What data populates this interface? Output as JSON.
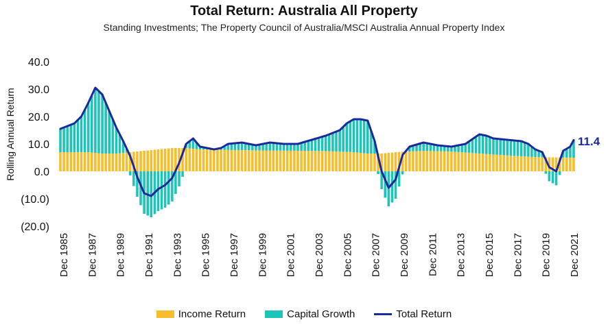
{
  "chart_data": {
    "type": "bar",
    "title": "Total Return: Australia All Property",
    "subtitle": "Standing Investments; The Property Council of Australia/MSCI Australia Annual Property Index",
    "ylabel": "Rolling Annual Return",
    "ylim": [
      -20,
      40
    ],
    "yticks": [
      {
        "value": 40,
        "label": "40.0"
      },
      {
        "value": 30,
        "label": "30.0"
      },
      {
        "value": 20,
        "label": "20.0"
      },
      {
        "value": 10,
        "label": "10.0"
      },
      {
        "value": 0,
        "label": "0.0"
      },
      {
        "value": -10,
        "label": "(10.0)"
      },
      {
        "value": -20,
        "label": "(20.0)"
      }
    ],
    "xtick_labels": [
      "Dec 1985",
      "Dec 1987",
      "Dec 1989",
      "Dec 1991",
      "Dec 1993",
      "Dec 1995",
      "Dec 1997",
      "Dec 1999",
      "Dec 2001",
      "Dec 2003",
      "Dec 2005",
      "Dec 2007",
      "Dec 2009",
      "Dec 2011",
      "Dec 2013",
      "Dec 2015",
      "Dec 2017",
      "Dec 2019",
      "Dec 2021"
    ],
    "end_label": "11.4",
    "colors": {
      "income": "#F6BE2C",
      "capital": "#1CC5B8",
      "total": "#1A2A9C"
    },
    "legend": {
      "income": "Income Return",
      "capital": "Capital Growth",
      "total": "Total Return"
    },
    "start_year": 1985,
    "end_year": 2021.75,
    "income_anchors": [
      [
        1985,
        7.0
      ],
      [
        1987,
        7.0
      ],
      [
        1988,
        6.5
      ],
      [
        1989,
        6.5
      ],
      [
        1990,
        7.0
      ],
      [
        1992,
        8.0
      ],
      [
        1993,
        8.5
      ],
      [
        1994,
        8.5
      ],
      [
        1995,
        8.0
      ],
      [
        1997,
        7.8
      ],
      [
        2000,
        7.6
      ],
      [
        2004,
        7.4
      ],
      [
        2006,
        7.0
      ],
      [
        2007,
        6.5
      ],
      [
        2008,
        6.5
      ],
      [
        2009,
        7.0
      ],
      [
        2011,
        7.5
      ],
      [
        2013,
        7.2
      ],
      [
        2015,
        6.5
      ],
      [
        2017,
        5.8
      ],
      [
        2019,
        5.2
      ],
      [
        2021.75,
        5.0
      ]
    ],
    "total_anchors": [
      [
        1985,
        15.5
      ],
      [
        1986,
        17.5
      ],
      [
        1986.5,
        20
      ],
      [
        1987,
        25
      ],
      [
        1987.5,
        30.5
      ],
      [
        1988,
        28
      ],
      [
        1988.5,
        22
      ],
      [
        1989,
        16
      ],
      [
        1989.5,
        11
      ],
      [
        1990,
        5.5
      ],
      [
        1990.5,
        -2
      ],
      [
        1991,
        -8
      ],
      [
        1991.5,
        -9
      ],
      [
        1992,
        -6.5
      ],
      [
        1992.5,
        -5
      ],
      [
        1993,
        -2.5
      ],
      [
        1993.5,
        3
      ],
      [
        1994,
        10
      ],
      [
        1994.5,
        12
      ],
      [
        1995,
        9
      ],
      [
        1996,
        8
      ],
      [
        1996.5,
        8.5
      ],
      [
        1997,
        10
      ],
      [
        1998,
        10.5
      ],
      [
        1999,
        9.5
      ],
      [
        2000,
        10.5
      ],
      [
        2001,
        10
      ],
      [
        2002,
        10
      ],
      [
        2003,
        11.5
      ],
      [
        2004,
        13
      ],
      [
        2005,
        15
      ],
      [
        2005.5,
        17.5
      ],
      [
        2006,
        19
      ],
      [
        2006.5,
        19
      ],
      [
        2007,
        18.5
      ],
      [
        2007.5,
        11
      ],
      [
        2008,
        0
      ],
      [
        2008.5,
        -6
      ],
      [
        2009,
        -3
      ],
      [
        2009.5,
        6
      ],
      [
        2010,
        9
      ],
      [
        2011,
        10.5
      ],
      [
        2012,
        9.5
      ],
      [
        2013,
        9
      ],
      [
        2014,
        10
      ],
      [
        2015,
        13.5
      ],
      [
        2015.5,
        13
      ],
      [
        2016,
        12
      ],
      [
        2017,
        11.5
      ],
      [
        2018,
        11
      ],
      [
        2018.5,
        10
      ],
      [
        2019,
        8
      ],
      [
        2019.5,
        7
      ],
      [
        2020,
        1.5
      ],
      [
        2020.5,
        0
      ],
      [
        2021,
        7.5
      ],
      [
        2021.5,
        9
      ],
      [
        2021.75,
        11.4
      ]
    ]
  }
}
